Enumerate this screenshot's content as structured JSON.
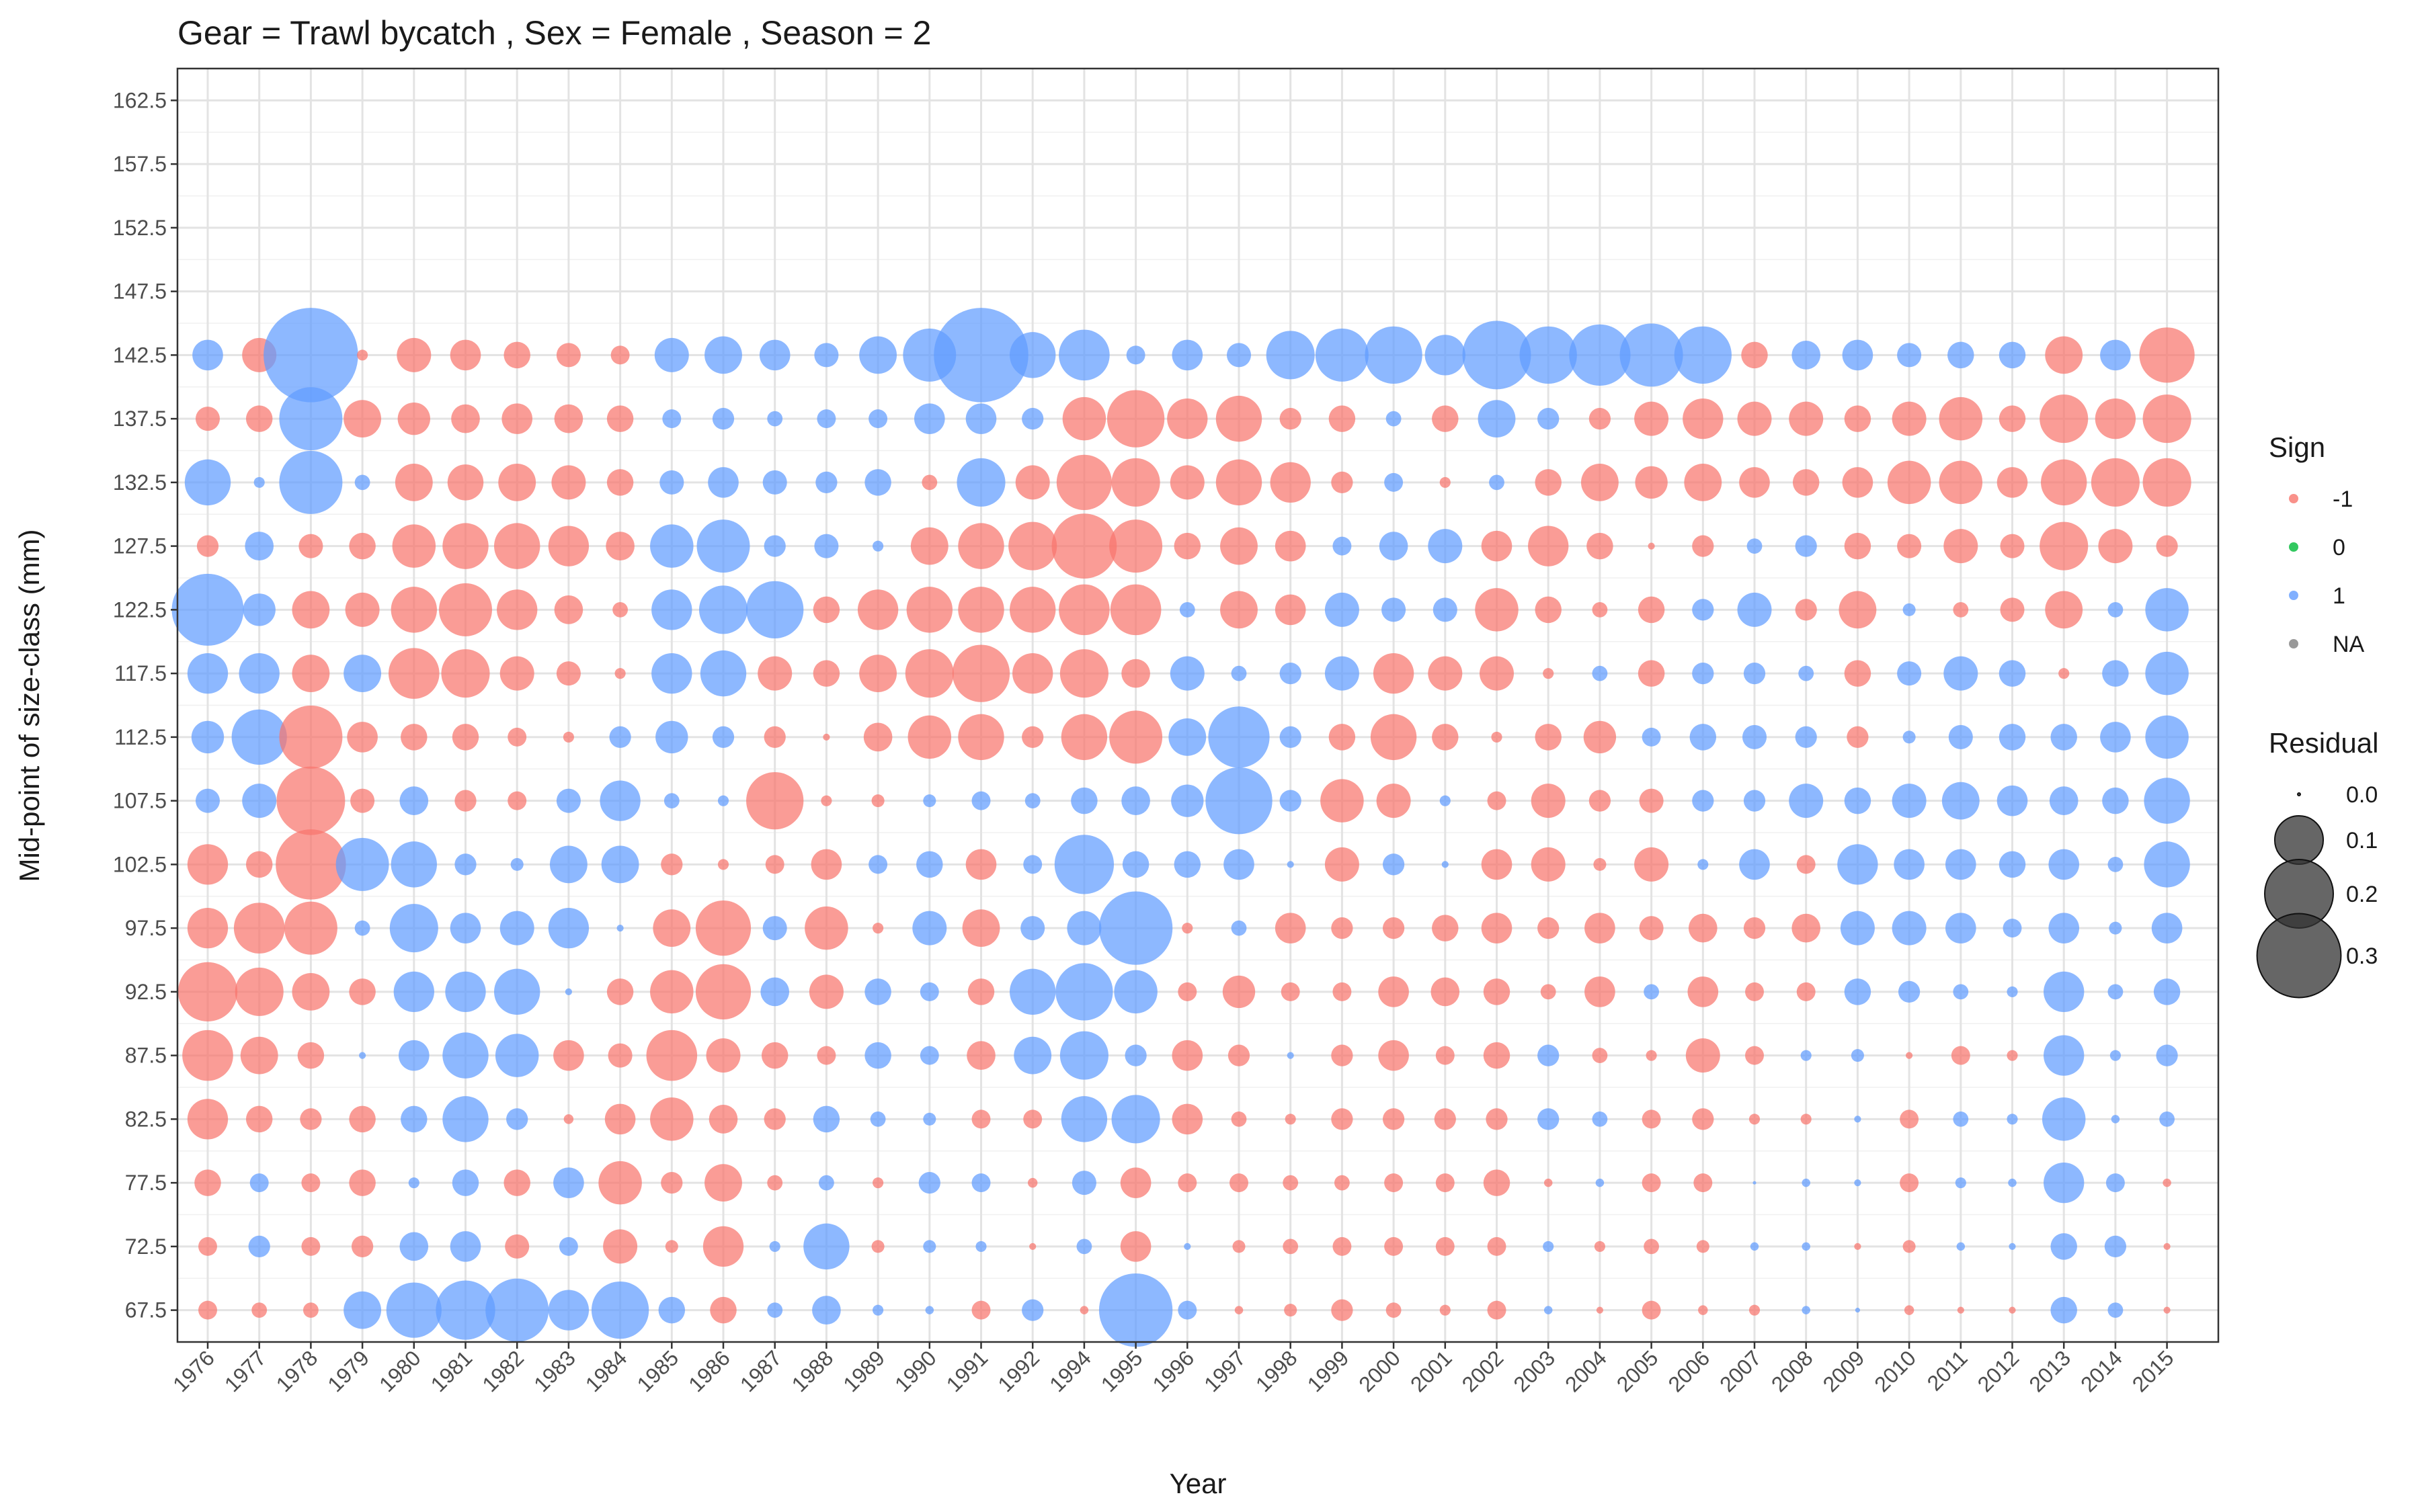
{
  "chart_data": {
    "type": "scatter",
    "title": "Gear = Trawl bycatch , Sex = Female , Season = 2",
    "xlabel": "Year",
    "ylabel": "Mid-point of size-class (mm)",
    "x_categories": [
      "1976",
      "1977",
      "1978",
      "1979",
      "1980",
      "1981",
      "1982",
      "1983",
      "1984",
      "1985",
      "1986",
      "1987",
      "1988",
      "1989",
      "1990",
      "1991",
      "1992",
      "1994",
      "1995",
      "1996",
      "1997",
      "1998",
      "1999",
      "2000",
      "2001",
      "2002",
      "2003",
      "2004",
      "2005",
      "2006",
      "2007",
      "2008",
      "2009",
      "2010",
      "2011",
      "2012",
      "2013",
      "2014",
      "2015"
    ],
    "y_ticks": [
      67.5,
      72.5,
      77.5,
      82.5,
      87.5,
      92.5,
      97.5,
      102.5,
      107.5,
      112.5,
      117.5,
      122.5,
      127.5,
      132.5,
      137.5,
      142.5,
      147.5,
      152.5,
      157.5,
      162.5
    ],
    "y_tick_labels": [
      "67.5",
      "72.5",
      "77.5",
      "82.5",
      "87.5",
      "92.5",
      "97.5",
      "102.5",
      "107.5",
      "112.5",
      "117.5",
      "122.5",
      "127.5",
      "132.5",
      "137.5",
      "142.5",
      "147.5",
      "152.5",
      "157.5",
      "162.5"
    ],
    "ylim": [
      65,
      165
    ],
    "grid": true,
    "legend_placement": "right",
    "sign_colors": {
      "-1": "#f8766d",
      "0": "#00ba38",
      "1": "#619cff",
      "NA": "#7f7f7f"
    },
    "legends": {
      "sign": {
        "title": "Sign",
        "entries": [
          "-1",
          "0",
          "1",
          "NA"
        ]
      },
      "residual": {
        "title": "Residual",
        "entries": [
          {
            "label": "0.0",
            "value": 0.0
          },
          {
            "label": "0.1",
            "value": 0.1
          },
          {
            "label": "0.2",
            "value": 0.2
          },
          {
            "label": "0.3",
            "value": 0.3
          }
        ]
      }
    },
    "residual_series_note_free": [],
    "residuals": {
      "142.5": [
        0.04,
        -0.05,
        0.38,
        -0.005,
        -0.05,
        -0.04,
        -0.03,
        -0.025,
        -0.015,
        0.05,
        0.06,
        0.04,
        0.025,
        0.06,
        0.12,
        0.38,
        0.09,
        0.11,
        0.015,
        0.04,
        0.025,
        0.1,
        0.12,
        0.14,
        0.07,
        0.2,
        0.14,
        0.16,
        0.17,
        0.14,
        -0.03,
        0.035,
        0.04,
        0.025,
        0.03,
        0.03,
        -0.06,
        0.04,
        -0.13
      ],
      "137.5": [
        -0.025,
        -0.03,
        0.17,
        -0.06,
        -0.045,
        -0.035,
        -0.04,
        -0.035,
        -0.03,
        0.015,
        0.02,
        0.01,
        0.015,
        0.015,
        0.04,
        0.04,
        0.02,
        -0.08,
        -0.14,
        -0.07,
        -0.09,
        -0.02,
        -0.03,
        0.01,
        -0.03,
        0.06,
        0.02,
        -0.02,
        -0.05,
        -0.07,
        -0.05,
        -0.05,
        -0.03,
        -0.05,
        -0.08,
        -0.03,
        -0.1,
        -0.07,
        -0.1
      ],
      "132.5": [
        0.09,
        0.005,
        0.17,
        0.01,
        -0.06,
        -0.055,
        -0.06,
        -0.05,
        -0.03,
        0.025,
        0.04,
        0.025,
        0.02,
        0.03,
        -0.01,
        0.1,
        -0.05,
        -0.13,
        -0.1,
        -0.05,
        -0.09,
        -0.07,
        -0.02,
        0.015,
        -0.005,
        0.01,
        -0.03,
        -0.06,
        -0.045,
        -0.06,
        -0.04,
        -0.03,
        -0.04,
        -0.08,
        -0.08,
        -0.04,
        -0.09,
        -0.1,
        -0.1
      ],
      "127.5": [
        -0.02,
        0.035,
        -0.025,
        -0.03,
        -0.08,
        -0.09,
        -0.09,
        -0.07,
        -0.035,
        0.08,
        0.12,
        0.02,
        0.025,
        0.005,
        -0.06,
        -0.09,
        -0.1,
        -0.18,
        -0.12,
        -0.03,
        -0.06,
        -0.04,
        0.015,
        0.035,
        0.05,
        -0.04,
        -0.07,
        -0.03,
        -0.002,
        -0.02,
        0.01,
        0.02,
        -0.03,
        -0.025,
        -0.05,
        -0.025,
        -0.1,
        -0.05,
        -0.02
      ],
      "122.5": [
        0.22,
        0.045,
        -0.06,
        -0.05,
        -0.09,
        -0.12,
        -0.07,
        -0.035,
        -0.01,
        0.07,
        0.1,
        0.14,
        -0.03,
        -0.07,
        -0.09,
        -0.09,
        -0.09,
        -0.11,
        -0.11,
        0.01,
        -0.06,
        -0.04,
        0.05,
        0.025,
        0.025,
        -0.08,
        -0.03,
        -0.01,
        -0.03,
        0.02,
        0.05,
        -0.02,
        -0.06,
        0.007,
        -0.01,
        -0.025,
        -0.06,
        0.01,
        0.08
      ],
      "117.5": [
        0.07,
        0.07,
        -0.06,
        0.06,
        -0.11,
        -0.1,
        -0.05,
        -0.025,
        -0.005,
        0.07,
        0.09,
        -0.05,
        -0.03,
        -0.06,
        -0.1,
        -0.14,
        -0.07,
        -0.1,
        -0.035,
        0.05,
        0.01,
        0.02,
        0.05,
        -0.07,
        -0.05,
        -0.05,
        -0.005,
        0.01,
        -0.03,
        0.02,
        0.02,
        0.01,
        -0.03,
        0.025,
        0.05,
        0.03,
        -0.005,
        0.03,
        0.08
      ],
      "112.5": [
        0.045,
        0.13,
        -0.17,
        -0.04,
        -0.03,
        -0.03,
        -0.015,
        -0.005,
        0.02,
        0.045,
        0.02,
        -0.02,
        -0.002,
        -0.035,
        -0.08,
        -0.09,
        -0.02,
        -0.09,
        -0.12,
        0.06,
        0.16,
        0.02,
        -0.03,
        -0.09,
        -0.03,
        -0.005,
        -0.03,
        -0.045,
        0.015,
        0.03,
        0.025,
        0.02,
        -0.02,
        0.007,
        0.025,
        0.03,
        0.03,
        0.04,
        0.08
      ],
      "107.5": [
        0.025,
        0.05,
        -0.2,
        -0.025,
        0.035,
        -0.02,
        -0.015,
        0.025,
        0.07,
        0.01,
        0.005,
        -0.14,
        -0.005,
        -0.007,
        0.007,
        0.015,
        0.01,
        0.03,
        0.035,
        0.045,
        0.19,
        0.02,
        -0.08,
        -0.05,
        0.005,
        -0.015,
        -0.05,
        -0.02,
        -0.025,
        0.02,
        0.02,
        0.05,
        0.03,
        0.05,
        0.06,
        0.04,
        0.035,
        0.03,
        0.09
      ],
      "102.5": [
        -0.07,
        -0.03,
        -0.21,
        0.12,
        0.09,
        0.02,
        0.007,
        0.06,
        0.06,
        -0.02,
        -0.005,
        -0.015,
        -0.04,
        0.015,
        0.03,
        -0.04,
        0.015,
        0.15,
        0.03,
        0.03,
        0.04,
        0.002,
        -0.05,
        0.02,
        0.002,
        -0.04,
        -0.05,
        -0.007,
        -0.05,
        0.005,
        0.04,
        -0.015,
        0.07,
        0.04,
        0.04,
        0.03,
        0.04,
        0.01,
        0.09
      ],
      "97.5": [
        -0.07,
        -0.11,
        -0.12,
        0.01,
        0.1,
        0.04,
        0.05,
        0.07,
        0.002,
        -0.06,
        -0.13,
        0.025,
        -0.08,
        -0.005,
        0.05,
        -0.06,
        0.025,
        0.05,
        0.23,
        -0.005,
        0.01,
        -0.04,
        -0.02,
        -0.02,
        -0.03,
        -0.04,
        -0.02,
        -0.04,
        -0.025,
        -0.035,
        -0.02,
        -0.035,
        0.05,
        0.05,
        0.04,
        0.015,
        0.04,
        0.007,
        0.04
      ],
      "92.5": [
        -0.15,
        -0.1,
        -0.06,
        -0.03,
        0.07,
        0.07,
        0.09,
        0.002,
        -0.03,
        -0.08,
        -0.13,
        0.035,
        -0.05,
        0.03,
        0.015,
        -0.03,
        0.09,
        0.14,
        0.08,
        -0.015,
        -0.045,
        -0.015,
        -0.015,
        -0.04,
        -0.035,
        -0.03,
        -0.01,
        -0.04,
        0.01,
        -0.04,
        -0.015,
        -0.015,
        0.03,
        0.02,
        0.01,
        0.005,
        0.07,
        0.01,
        0.03
      ],
      "87.5": [
        -0.11,
        -0.06,
        -0.03,
        0.002,
        0.04,
        0.09,
        0.08,
        -0.04,
        -0.025,
        -0.11,
        -0.05,
        -0.03,
        -0.015,
        0.03,
        0.015,
        -0.035,
        0.06,
        0.1,
        0.02,
        -0.04,
        -0.02,
        0.002,
        -0.02,
        -0.04,
        -0.015,
        -0.03,
        0.02,
        -0.01,
        -0.005,
        -0.05,
        -0.015,
        0.005,
        0.007,
        -0.002,
        -0.015,
        -0.005,
        0.07,
        0.005,
        0.02
      ],
      "82.5": [
        -0.07,
        -0.03,
        -0.02,
        -0.03,
        0.03,
        0.09,
        0.02,
        -0.004,
        -0.04,
        -0.08,
        -0.035,
        -0.02,
        0.03,
        0.01,
        0.007,
        -0.015,
        -0.015,
        0.09,
        0.1,
        -0.04,
        -0.01,
        -0.005,
        -0.02,
        -0.02,
        -0.02,
        -0.02,
        0.02,
        0.01,
        -0.015,
        -0.02,
        -0.005,
        -0.005,
        0.002,
        -0.015,
        0.01,
        0.005,
        0.08,
        0.003,
        0.01
      ],
      "77.5": [
        -0.03,
        0.015,
        -0.015,
        -0.03,
        0.005,
        0.03,
        -0.03,
        0.04,
        -0.08,
        -0.02,
        -0.06,
        -0.01,
        0.01,
        -0.005,
        0.02,
        0.015,
        -0.004,
        0.025,
        -0.04,
        -0.015,
        -0.015,
        -0.01,
        -0.01,
        -0.015,
        -0.015,
        -0.03,
        -0.003,
        0.003,
        -0.015,
        -0.015,
        0.0005,
        0.003,
        0.002,
        -0.015,
        0.005,
        0.003,
        0.07,
        0.015,
        -0.003
      ],
      "72.5": [
        -0.015,
        0.02,
        -0.015,
        -0.02,
        0.035,
        0.04,
        -0.025,
        0.015,
        -0.05,
        -0.007,
        -0.07,
        0.005,
        0.09,
        -0.007,
        0.007,
        0.005,
        -0.002,
        0.01,
        -0.04,
        0.002,
        -0.007,
        -0.01,
        -0.015,
        -0.015,
        -0.015,
        -0.015,
        0.005,
        -0.005,
        -0.01,
        -0.007,
        0.003,
        0.003,
        -0.002,
        -0.007,
        0.003,
        0.002,
        0.03,
        0.02,
        -0.002
      ],
      "67.5": [
        -0.015,
        -0.01,
        -0.01,
        0.06,
        0.13,
        0.15,
        0.17,
        0.07,
        0.14,
        0.03,
        -0.03,
        0.01,
        0.035,
        0.005,
        0.003,
        -0.015,
        0.02,
        -0.003,
        0.23,
        0.015,
        -0.003,
        -0.007,
        -0.02,
        -0.01,
        -0.005,
        -0.015,
        0.003,
        -0.002,
        -0.015,
        -0.004,
        -0.005,
        0.003,
        0.001,
        -0.004,
        -0.002,
        -0.002,
        0.03,
        0.01,
        -0.002
      ]
    }
  }
}
